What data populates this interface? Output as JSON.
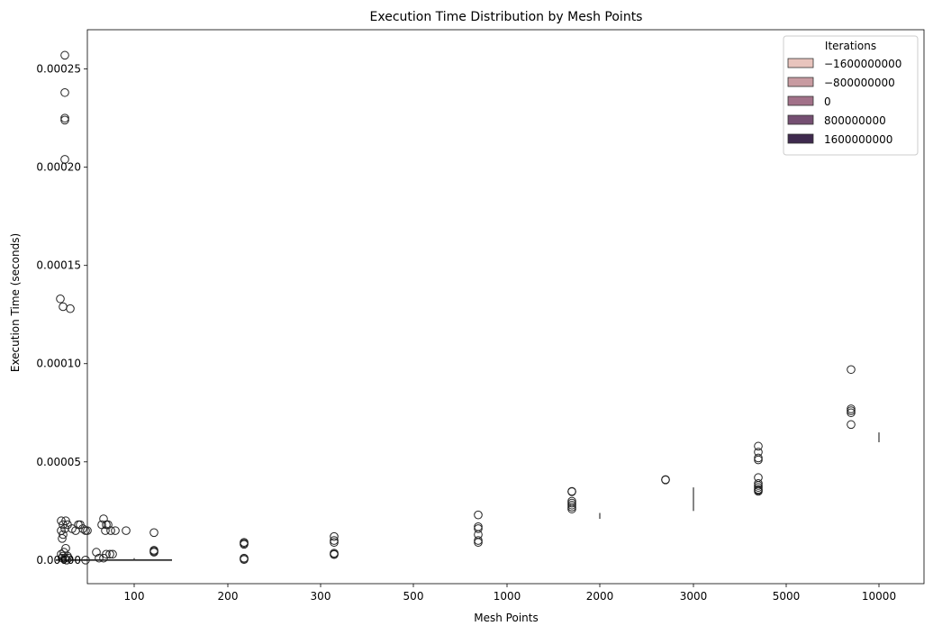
{
  "chart_data": {
    "type": "box",
    "title": "Execution Time Distribution by Mesh Points",
    "xlabel": "Mesh Points",
    "ylabel": "Execution Time (seconds)",
    "x_scale": "categorical",
    "x_tick_labels": [
      "100",
      "200",
      "300",
      "500",
      "1000",
      "2000",
      "3000",
      "5000",
      "10000"
    ],
    "x_tick_values": [
      100,
      200,
      300,
      500,
      1000,
      2000,
      3000,
      5000,
      10000
    ],
    "ylim": [
      -1.2e-05,
      0.00027
    ],
    "y_ticks": [
      0.0,
      5e-05,
      0.0001,
      0.00015,
      0.0002,
      0.00025
    ],
    "y_tick_labels": [
      "0.00000",
      "0.00005",
      "0.00010",
      "0.00015",
      "0.00020",
      "0.00025"
    ],
    "grid": false,
    "legend": {
      "title": "Iterations",
      "placement": "top-right",
      "entries": [
        {
          "label": "−1600000000",
          "color": "#e8c4bd"
        },
        {
          "label": "−800000000",
          "color": "#c89ba1"
        },
        {
          "label": "0",
          "color": "#a27189"
        },
        {
          "label": "800000000",
          "color": "#754f72"
        },
        {
          "label": "1600000000",
          "color": "#3f2a4e"
        }
      ]
    },
    "groups": [
      {
        "mesh_points": 100,
        "whisker_segments": [
          [
            0.0,
            1e-06
          ]
        ],
        "outliers": [
          [
            67,
            0.000133
          ],
          [
            70,
            0.000129
          ],
          [
            78,
            0.000128
          ],
          [
            72,
            0.000257
          ],
          [
            72,
            0.000238
          ],
          [
            72,
            0.000225
          ],
          [
            72,
            0.000224
          ],
          [
            72,
            0.000204
          ],
          [
            68,
            2e-05
          ],
          [
            70,
            1.8e-05
          ],
          [
            72,
            1.6e-05
          ],
          [
            73,
            2e-05
          ],
          [
            75,
            1.8e-05
          ],
          [
            80,
            1.6e-05
          ],
          [
            68,
            1.5e-05
          ],
          [
            70,
            1.3e-05
          ],
          [
            69,
            1.1e-05
          ],
          [
            84,
            1.5e-05
          ],
          [
            87,
            1.8e-05
          ],
          [
            89,
            1.8e-05
          ],
          [
            92,
            1.6e-05
          ],
          [
            95,
            1.5e-05
          ],
          [
            97,
            1.5e-05
          ],
          [
            115,
            2.1e-05
          ],
          [
            118,
            1.8e-05
          ],
          [
            113,
            1.8e-05
          ],
          [
            120,
            1.8e-05
          ],
          [
            117,
            1.5e-05
          ],
          [
            123,
            1.5e-05
          ],
          [
            128,
            1.5e-05
          ],
          [
            140,
            1.5e-05
          ],
          [
            95,
            0.0
          ],
          [
            107,
            4e-06
          ],
          [
            110,
            1e-06
          ],
          [
            115,
            1e-06
          ],
          [
            118,
            3e-06
          ],
          [
            122,
            3e-06
          ],
          [
            125,
            3e-06
          ],
          [
            68,
            3e-06
          ],
          [
            70,
            2e-06
          ],
          [
            72,
            1e-06
          ],
          [
            74,
            0.0
          ],
          [
            76,
            1e-06
          ],
          [
            71,
            4e-06
          ],
          [
            73,
            6e-06
          ],
          [
            75,
            2e-06
          ],
          [
            69,
            1e-06
          ]
        ]
      },
      {
        "mesh_points": 200,
        "whisker_segments": [],
        "outliers": [
          [
            171,
            1.4e-05
          ],
          [
            171,
            5e-06
          ],
          [
            171,
            4.5e-06
          ],
          [
            171,
            4e-06
          ]
        ]
      },
      {
        "mesh_points": 300,
        "whisker_segments": [],
        "outliers": [
          [
            271,
            9e-06
          ],
          [
            271,
            8.5e-06
          ],
          [
            271,
            8e-06
          ],
          [
            271,
            1e-06
          ],
          [
            271,
            5e-07
          ],
          [
            271,
            3e-07
          ]
        ]
      },
      {
        "mesh_points": 500,
        "whisker_segments": [],
        "outliers": [
          [
            371,
            1.2e-05
          ],
          [
            371,
            1e-05
          ],
          [
            371,
            9e-06
          ],
          [
            371,
            3.5e-06
          ],
          [
            371,
            3e-06
          ],
          [
            371,
            2.8e-06
          ]
        ]
      },
      {
        "mesh_points": 1000,
        "whisker_segments": [],
        "outliers": [
          [
            531,
            2.3e-05
          ],
          [
            531,
            1.7e-05
          ],
          [
            531,
            1.6e-05
          ],
          [
            531,
            1.3e-05
          ],
          [
            531,
            1e-05
          ],
          [
            531,
            9e-06
          ]
        ]
      },
      {
        "mesh_points": 2000,
        "whisker_segments": [
          [
            2.1e-05,
            2.4e-05
          ]
        ],
        "outliers": [
          [
            635,
            3.5e-05
          ],
          [
            635,
            3.48e-05
          ],
          [
            635,
            3e-05
          ],
          [
            635,
            2.9e-05
          ],
          [
            635,
            2.8e-05
          ],
          [
            635,
            2.7e-05
          ],
          [
            635,
            2.6e-05
          ]
        ]
      },
      {
        "mesh_points": 3000,
        "whisker_segments": [
          [
            2.5e-05,
            3.7e-05
          ]
        ],
        "outliers": [
          [
            739,
            4.1e-05
          ],
          [
            739,
            4.08e-05
          ]
        ]
      },
      {
        "mesh_points": 5000,
        "whisker_segments": [],
        "outliers": [
          [
            842,
            5.8e-05
          ],
          [
            842,
            5.5e-05
          ],
          [
            842,
            5.2e-05
          ],
          [
            842,
            5.1e-05
          ],
          [
            842,
            4.2e-05
          ],
          [
            842,
            3.9e-05
          ],
          [
            842,
            3.8e-05
          ],
          [
            842,
            3.7e-05
          ],
          [
            842,
            3.6e-05
          ],
          [
            842,
            3.55e-05
          ],
          [
            842,
            3.5e-05
          ]
        ]
      },
      {
        "mesh_points": 10000,
        "whisker_segments": [
          [
            6e-05,
            6.5e-05
          ]
        ],
        "outliers": [
          [
            945,
            9.7e-05
          ],
          [
            945,
            7.7e-05
          ],
          [
            945,
            7.6e-05
          ],
          [
            945,
            7.5e-05
          ],
          [
            945,
            6.9e-05
          ]
        ]
      }
    ],
    "baseline_segment": {
      "y": 0.0,
      "x_from": 62,
      "x_to": 191
    }
  }
}
